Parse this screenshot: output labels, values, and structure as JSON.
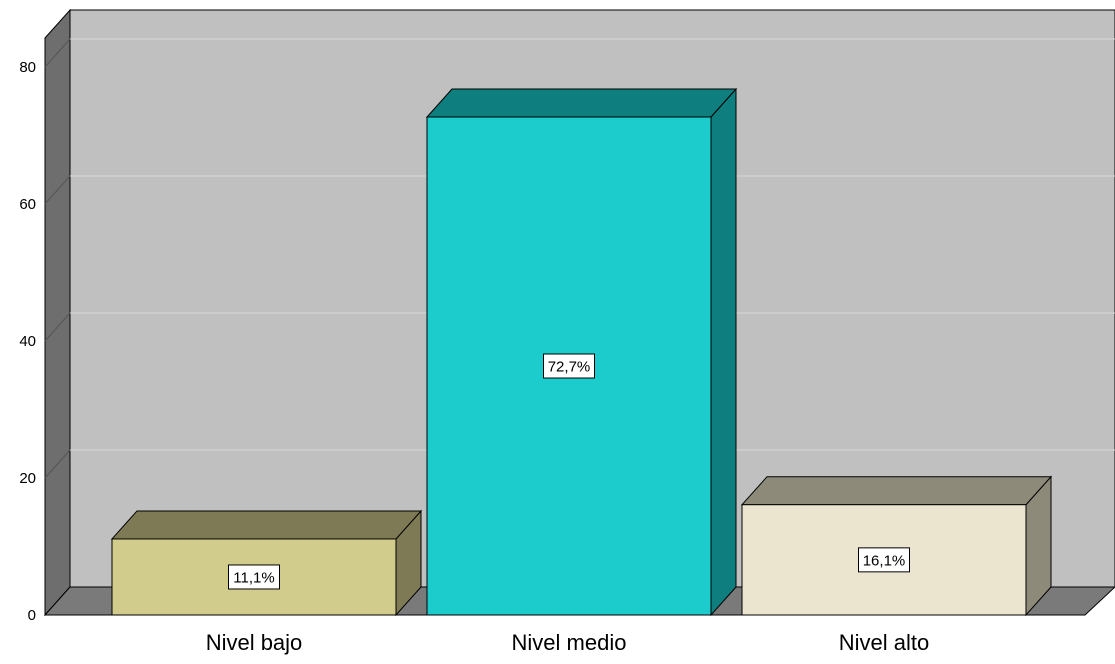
{
  "chart_data": {
    "type": "bar",
    "title": "",
    "xlabel": "",
    "ylabel": "",
    "categories": [
      "Nivel bajo",
      "Nivel medio",
      "Nivel alto"
    ],
    "values": [
      11.1,
      72.7,
      16.1
    ],
    "data_labels": [
      "11,1%",
      "72,7%",
      "16,1%"
    ],
    "ylim": [
      0,
      85
    ],
    "yticks": [
      0,
      20,
      40,
      60,
      80
    ],
    "grid": true,
    "legend": "none",
    "style": "3d",
    "colors": {
      "background": "#c0c0c0",
      "floor": "#7a7a7a",
      "left_wall": "#6e6e6e",
      "gridline": "#d8d8d8",
      "bars": [
        {
          "front": "#d2cc8c",
          "top": "#7e7a55",
          "side": "#7e7a55"
        },
        {
          "front": "#1ccccc",
          "top": "#0e7e7e",
          "side": "#0e7e7e"
        },
        {
          "front": "#ebe5d0",
          "top": "#8e8a7a",
          "side": "#8e8a7a"
        }
      ]
    }
  }
}
